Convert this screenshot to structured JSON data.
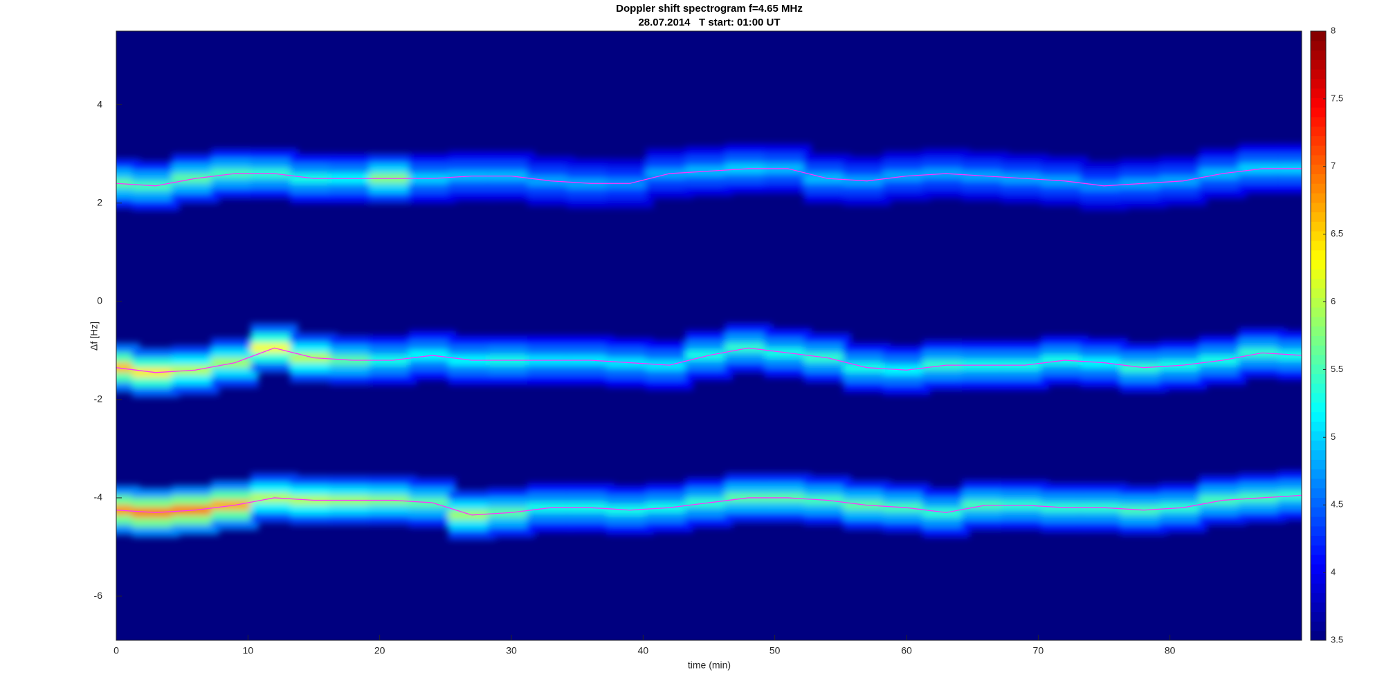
{
  "chart_data": {
    "type": "spectrogram",
    "title": "Doppler shift spectrogram f=4.65 MHz",
    "subtitle": "28.07.2014   T start: 01:00 UT",
    "xlabel": "time (min)",
    "ylabel": "Δf [Hz]",
    "x": [
      0,
      3,
      6,
      9,
      12,
      15,
      18,
      21,
      24,
      27,
      30,
      33,
      36,
      39,
      42,
      45,
      48,
      51,
      54,
      57,
      60,
      63,
      66,
      69,
      72,
      75,
      78,
      81,
      84,
      87,
      90
    ],
    "series": [
      {
        "color": "#ff33ff",
        "values": [
          2.4,
          2.35,
          2.5,
          2.6,
          2.6,
          2.5,
          2.5,
          2.5,
          2.5,
          2.55,
          2.55,
          2.45,
          2.4,
          2.4,
          2.6,
          2.65,
          2.7,
          2.7,
          2.5,
          2.45,
          2.55,
          2.6,
          2.55,
          2.5,
          2.45,
          2.35,
          2.4,
          2.45,
          2.6,
          2.7,
          2.7
        ],
        "intensity": [
          5.6,
          5.5,
          5.6,
          5.5,
          5.4,
          5.3,
          5.2,
          5.8,
          5.0,
          4.9,
          4.9,
          4.8,
          4.8,
          4.7,
          4.8,
          4.9,
          5.0,
          4.9,
          4.9,
          4.8,
          4.8,
          4.8,
          4.8,
          4.8,
          4.8,
          4.7,
          4.8,
          4.8,
          4.9,
          5.0,
          5.0
        ]
      },
      {
        "color": "#ff33ff",
        "values": [
          -1.35,
          -1.45,
          -1.4,
          -1.25,
          -0.95,
          -1.15,
          -1.2,
          -1.2,
          -1.1,
          -1.2,
          -1.2,
          -1.2,
          -1.2,
          -1.25,
          -1.3,
          -1.1,
          -0.95,
          -1.05,
          -1.15,
          -1.35,
          -1.4,
          -1.3,
          -1.3,
          -1.3,
          -1.2,
          -1.25,
          -1.35,
          -1.3,
          -1.2,
          -1.05,
          -1.1
        ],
        "intensity": [
          6.6,
          6.4,
          6.0,
          5.9,
          6.3,
          6.0,
          5.6,
          5.3,
          5.2,
          5.2,
          5.3,
          5.1,
          5.1,
          5.1,
          5.1,
          5.3,
          5.4,
          5.3,
          5.4,
          5.3,
          5.2,
          5.4,
          5.3,
          5.3,
          5.3,
          5.2,
          5.4,
          5.3,
          5.3,
          5.4,
          5.3
        ]
      },
      {
        "color": "#ff33ff",
        "values": [
          -4.25,
          -4.3,
          -4.25,
          -4.15,
          -4.0,
          -4.05,
          -4.05,
          -4.05,
          -4.1,
          -4.35,
          -4.3,
          -4.2,
          -4.2,
          -4.25,
          -4.2,
          -4.1,
          -4.0,
          -4.0,
          -4.05,
          -4.15,
          -4.2,
          -4.3,
          -4.15,
          -4.15,
          -4.2,
          -4.2,
          -4.25,
          -4.2,
          -4.05,
          -4.0,
          -3.95
        ],
        "intensity": [
          6.8,
          6.9,
          6.9,
          6.7,
          6.0,
          6.0,
          5.9,
          5.8,
          5.6,
          5.9,
          5.6,
          5.3,
          5.3,
          5.3,
          5.3,
          5.4,
          5.6,
          5.6,
          5.5,
          5.6,
          5.5,
          5.4,
          5.5,
          5.4,
          5.4,
          5.4,
          5.5,
          5.4,
          5.5,
          5.5,
          5.4
        ]
      }
    ],
    "xlim": [
      0,
      90
    ],
    "ylim": [
      -6.9,
      5.5
    ],
    "xticks": [
      0,
      10,
      20,
      30,
      40,
      50,
      60,
      70,
      80
    ],
    "yticks": [
      -6,
      -4,
      -2,
      0,
      2,
      4
    ],
    "clim": [
      3.5,
      8
    ],
    "colormap": "jet",
    "cticks": [
      3.5,
      4,
      4.5,
      5,
      5.5,
      6,
      6.5,
      7,
      7.5,
      8
    ]
  }
}
